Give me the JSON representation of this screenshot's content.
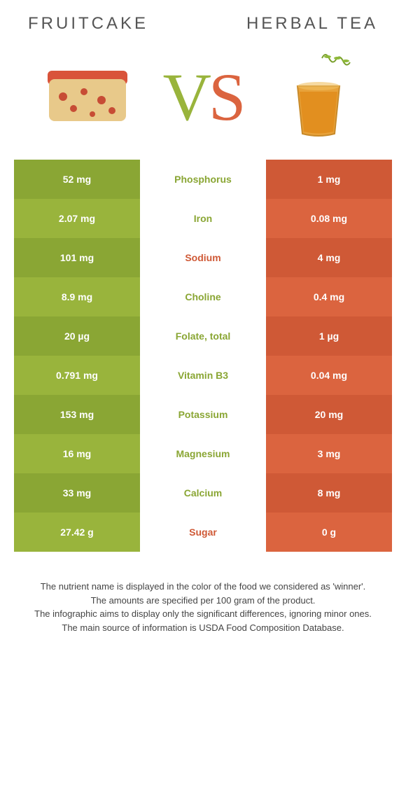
{
  "left_food": {
    "name": "Fruitcake"
  },
  "right_food": {
    "name": "Herbal tea"
  },
  "vs": {
    "v": "V",
    "s": "S"
  },
  "colors": {
    "left_primary": "#99b43c",
    "left_alt": "#8aa634",
    "right_primary": "#db643f",
    "right_alt": "#cf5936",
    "left_text": "#8aa634",
    "right_text": "#cf5936"
  },
  "rows": [
    {
      "nutrient": "Phosphorus",
      "left": "52 mg",
      "right": "1 mg",
      "winner": "left"
    },
    {
      "nutrient": "Iron",
      "left": "2.07 mg",
      "right": "0.08 mg",
      "winner": "left"
    },
    {
      "nutrient": "Sodium",
      "left": "101 mg",
      "right": "4 mg",
      "winner": "right"
    },
    {
      "nutrient": "Choline",
      "left": "8.9 mg",
      "right": "0.4 mg",
      "winner": "left"
    },
    {
      "nutrient": "Folate, total",
      "left": "20 µg",
      "right": "1 µg",
      "winner": "left"
    },
    {
      "nutrient": "Vitamin B3",
      "left": "0.791 mg",
      "right": "0.04 mg",
      "winner": "left"
    },
    {
      "nutrient": "Potassium",
      "left": "153 mg",
      "right": "20 mg",
      "winner": "left"
    },
    {
      "nutrient": "Magnesium",
      "left": "16 mg",
      "right": "3 mg",
      "winner": "left"
    },
    {
      "nutrient": "Calcium",
      "left": "33 mg",
      "right": "8 mg",
      "winner": "left"
    },
    {
      "nutrient": "Sugar",
      "left": "27.42 g",
      "right": "0 g",
      "winner": "right"
    }
  ],
  "footer": {
    "line1": "The nutrient name is displayed in the color of the food we considered as 'winner'.",
    "line2": "The amounts are specified per 100 gram of the product.",
    "line3": "The infographic aims to display only the significant differences, ignoring minor ones.",
    "line4": "The main source of information is USDA Food Composition Database."
  }
}
